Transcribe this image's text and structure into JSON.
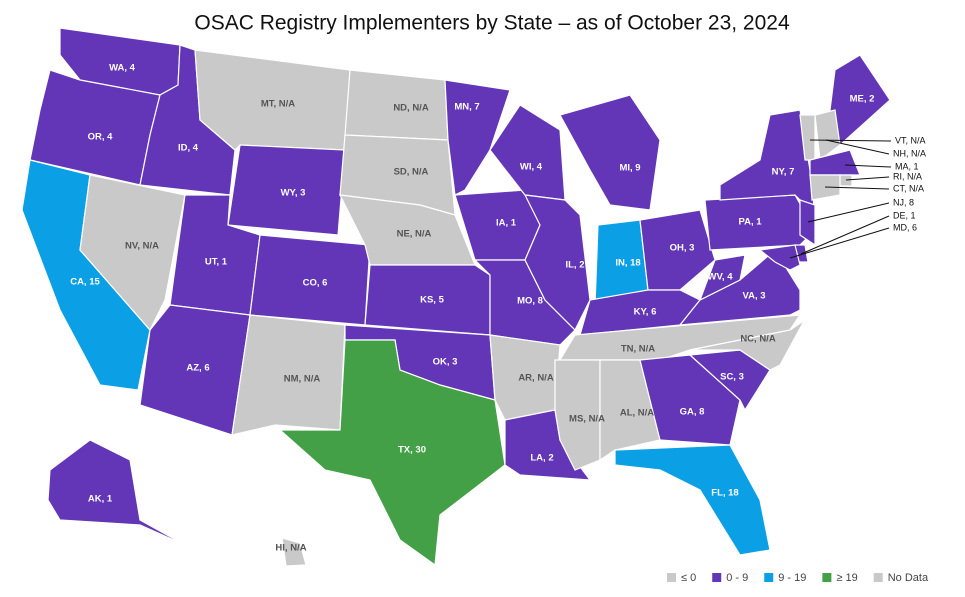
{
  "title": "OSAC Registry Implementers by State – as of October 23, 2024",
  "legend": [
    {
      "label": "≤ 0",
      "color": "#c9c9c9"
    },
    {
      "label": "0 - 9",
      "color": "#6236b7"
    },
    {
      "label": "9 - 19",
      "color": "#0ba0e6"
    },
    {
      "label": "≥ 19",
      "color": "#43a047"
    },
    {
      "label": "No Data",
      "color": "#c9c9c9"
    }
  ],
  "states": [
    {
      "label": "WA, 4",
      "color": "#6236b7"
    },
    {
      "label": "OR, 4",
      "color": "#6236b7"
    },
    {
      "label": "CA, 15",
      "color": "#0ba0e6"
    },
    {
      "label": "NV, N/A",
      "color": "#c9c9c9"
    },
    {
      "label": "ID, 4",
      "color": "#6236b7"
    },
    {
      "label": "MT, N/A",
      "color": "#c9c9c9"
    },
    {
      "label": "WY, 3",
      "color": "#6236b7"
    },
    {
      "label": "UT, 1",
      "color": "#6236b7"
    },
    {
      "label": "CO, 6",
      "color": "#6236b7"
    },
    {
      "label": "AZ, 6",
      "color": "#6236b7"
    },
    {
      "label": "NM, N/A",
      "color": "#c9c9c9"
    },
    {
      "label": "ND, N/A",
      "color": "#c9c9c9"
    },
    {
      "label": "SD, N/A",
      "color": "#c9c9c9"
    },
    {
      "label": "NE, N/A",
      "color": "#c9c9c9"
    },
    {
      "label": "KS, 5",
      "color": "#6236b7"
    },
    {
      "label": "OK, 3",
      "color": "#6236b7"
    },
    {
      "label": "TX, 30",
      "color": "#43a047"
    },
    {
      "label": "MN, 7",
      "color": "#6236b7"
    },
    {
      "label": "IA, 1",
      "color": "#6236b7"
    },
    {
      "label": "MO, 8",
      "color": "#6236b7"
    },
    {
      "label": "AR, N/A",
      "color": "#c9c9c9"
    },
    {
      "label": "LA, 2",
      "color": "#6236b7"
    },
    {
      "label": "WI, 4",
      "color": "#6236b7"
    },
    {
      "label": "IL, 2",
      "color": "#6236b7"
    },
    {
      "label": "MI, 9",
      "color": "#6236b7"
    },
    {
      "label": "IN, 18",
      "color": "#0ba0e6"
    },
    {
      "label": "OH, 3",
      "color": "#6236b7"
    },
    {
      "label": "KY, 6",
      "color": "#6236b7"
    },
    {
      "label": "TN, N/A",
      "color": "#c9c9c9"
    },
    {
      "label": "MS, N/A",
      "color": "#c9c9c9"
    },
    {
      "label": "AL, N/A",
      "color": "#c9c9c9"
    },
    {
      "label": "GA, 8",
      "color": "#6236b7"
    },
    {
      "label": "FL, 18",
      "color": "#0ba0e6"
    },
    {
      "label": "SC, 3",
      "color": "#6236b7"
    },
    {
      "label": "NC, N/A",
      "color": "#c9c9c9"
    },
    {
      "label": "VA, 3",
      "color": "#6236b7"
    },
    {
      "label": "WV, 4",
      "color": "#6236b7"
    },
    {
      "label": "PA, 1",
      "color": "#6236b7"
    },
    {
      "label": "NY, 7",
      "color": "#6236b7"
    },
    {
      "label": "ME, 2",
      "color": "#6236b7"
    },
    {
      "label": "AK, 1",
      "color": "#6236b7"
    },
    {
      "label": "HI, N/A",
      "color": "#c9c9c9"
    },
    {
      "label": "VT, N/A",
      "color": "#c9c9c9"
    },
    {
      "label": "NH, N/A",
      "color": "#c9c9c9"
    },
    {
      "label": "MA, 1",
      "color": "#6236b7"
    },
    {
      "label": "RI, N/A",
      "color": "#c9c9c9"
    },
    {
      "label": "CT, N/A",
      "color": "#c9c9c9"
    },
    {
      "label": "NJ, 8",
      "color": "#6236b7"
    },
    {
      "label": "DE, 1",
      "color": "#6236b7"
    },
    {
      "label": "MD, 6",
      "color": "#6236b7"
    }
  ]
}
